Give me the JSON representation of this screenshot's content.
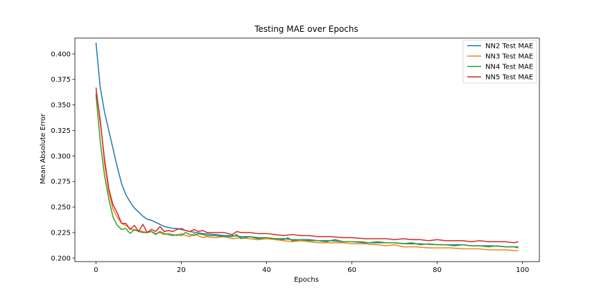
{
  "chart_data": {
    "type": "line",
    "title": "Testing MAE over Epochs",
    "xlabel": "Epochs",
    "ylabel": "Mean Absolute Error",
    "xlim": [
      -4.95,
      103.95
    ],
    "ylim": [
      0.1965,
      0.4155
    ],
    "xticks": [
      0,
      20,
      40,
      60,
      80,
      100
    ],
    "yticks": [
      0.2,
      0.225,
      0.25,
      0.275,
      0.3,
      0.325,
      0.35,
      0.375,
      0.4
    ],
    "ytick_labels": [
      "0.200",
      "0.225",
      "0.250",
      "0.275",
      "0.300",
      "0.325",
      "0.350",
      "0.375",
      "0.400"
    ],
    "grid": false,
    "legend_position": "top-right",
    "series": [
      {
        "name": "NN2 Test MAE",
        "color": "#1f77b4",
        "points": [
          [
            0,
            0.411
          ],
          [
            1,
            0.367
          ],
          [
            2,
            0.343
          ],
          [
            3,
            0.325
          ],
          [
            4,
            0.307
          ],
          [
            5,
            0.289
          ],
          [
            6,
            0.273
          ],
          [
            7,
            0.262
          ],
          [
            8,
            0.255
          ],
          [
            9,
            0.249
          ],
          [
            10,
            0.245
          ],
          [
            11,
            0.241
          ],
          [
            12,
            0.238
          ],
          [
            13,
            0.237
          ],
          [
            14,
            0.235
          ],
          [
            15,
            0.233
          ],
          [
            16,
            0.231
          ],
          [
            17,
            0.23
          ],
          [
            18,
            0.229
          ],
          [
            19,
            0.229
          ],
          [
            20,
            0.228
          ],
          [
            22,
            0.226
          ],
          [
            25,
            0.224
          ],
          [
            28,
            0.223
          ],
          [
            30,
            0.222
          ],
          [
            32,
            0.222
          ],
          [
            34,
            0.221
          ],
          [
            36,
            0.221
          ],
          [
            38,
            0.22
          ],
          [
            40,
            0.22
          ],
          [
            42,
            0.219
          ],
          [
            44,
            0.219
          ],
          [
            46,
            0.218
          ],
          [
            48,
            0.218
          ],
          [
            50,
            0.218
          ],
          [
            52,
            0.217
          ],
          [
            55,
            0.217
          ],
          [
            58,
            0.216
          ],
          [
            60,
            0.216
          ],
          [
            63,
            0.215
          ],
          [
            66,
            0.215
          ],
          [
            70,
            0.215
          ],
          [
            73,
            0.214
          ],
          [
            76,
            0.214
          ],
          [
            80,
            0.213
          ],
          [
            83,
            0.213
          ],
          [
            86,
            0.213
          ],
          [
            88,
            0.212
          ],
          [
            90,
            0.212
          ],
          [
            93,
            0.212
          ],
          [
            96,
            0.211
          ],
          [
            99,
            0.211
          ]
        ]
      },
      {
        "name": "NN3 Test MAE",
        "color": "#ff7f0e",
        "points": [
          [
            0,
            0.362
          ],
          [
            1,
            0.337
          ],
          [
            2,
            0.293
          ],
          [
            3,
            0.265
          ],
          [
            4,
            0.248
          ],
          [
            5,
            0.24
          ],
          [
            6,
            0.234
          ],
          [
            7,
            0.232
          ],
          [
            8,
            0.229
          ],
          [
            9,
            0.227
          ],
          [
            10,
            0.227
          ],
          [
            11,
            0.226
          ],
          [
            12,
            0.225
          ],
          [
            13,
            0.226
          ],
          [
            14,
            0.224
          ],
          [
            15,
            0.225
          ],
          [
            16,
            0.223
          ],
          [
            17,
            0.224
          ],
          [
            18,
            0.223
          ],
          [
            19,
            0.222
          ],
          [
            20,
            0.224
          ],
          [
            21,
            0.222
          ],
          [
            22,
            0.221
          ],
          [
            23,
            0.224
          ],
          [
            24,
            0.222
          ],
          [
            25,
            0.22
          ],
          [
            26,
            0.221
          ],
          [
            28,
            0.22
          ],
          [
            30,
            0.221
          ],
          [
            32,
            0.219
          ],
          [
            34,
            0.22
          ],
          [
            36,
            0.219
          ],
          [
            38,
            0.218
          ],
          [
            40,
            0.219
          ],
          [
            42,
            0.218
          ],
          [
            44,
            0.217
          ],
          [
            46,
            0.216
          ],
          [
            48,
            0.217
          ],
          [
            50,
            0.216
          ],
          [
            52,
            0.215
          ],
          [
            55,
            0.215
          ],
          [
            58,
            0.215
          ],
          [
            60,
            0.214
          ],
          [
            63,
            0.214
          ],
          [
            66,
            0.213
          ],
          [
            68,
            0.212
          ],
          [
            70,
            0.213
          ],
          [
            72,
            0.211
          ],
          [
            75,
            0.211
          ],
          [
            78,
            0.21
          ],
          [
            80,
            0.21
          ],
          [
            83,
            0.21
          ],
          [
            86,
            0.209
          ],
          [
            88,
            0.209
          ],
          [
            90,
            0.209
          ],
          [
            92,
            0.208
          ],
          [
            94,
            0.208
          ],
          [
            96,
            0.208
          ],
          [
            99,
            0.207
          ]
        ]
      },
      {
        "name": "NN4 Test MAE",
        "color": "#2ca02c",
        "points": [
          [
            0,
            0.36
          ],
          [
            1,
            0.314
          ],
          [
            2,
            0.281
          ],
          [
            3,
            0.258
          ],
          [
            4,
            0.24
          ],
          [
            5,
            0.232
          ],
          [
            6,
            0.228
          ],
          [
            7,
            0.229
          ],
          [
            8,
            0.224
          ],
          [
            9,
            0.228
          ],
          [
            10,
            0.226
          ],
          [
            11,
            0.225
          ],
          [
            12,
            0.225
          ],
          [
            13,
            0.226
          ],
          [
            14,
            0.223
          ],
          [
            15,
            0.226
          ],
          [
            16,
            0.224
          ],
          [
            17,
            0.223
          ],
          [
            18,
            0.222
          ],
          [
            19,
            0.223
          ],
          [
            20,
            0.222
          ],
          [
            21,
            0.225
          ],
          [
            22,
            0.223
          ],
          [
            23,
            0.222
          ],
          [
            24,
            0.224
          ],
          [
            26,
            0.222
          ],
          [
            28,
            0.222
          ],
          [
            30,
            0.221
          ],
          [
            32,
            0.221
          ],
          [
            33,
            0.223
          ],
          [
            34,
            0.219
          ],
          [
            36,
            0.221
          ],
          [
            38,
            0.219
          ],
          [
            40,
            0.22
          ],
          [
            42,
            0.219
          ],
          [
            44,
            0.218
          ],
          [
            45,
            0.22
          ],
          [
            46,
            0.217
          ],
          [
            48,
            0.218
          ],
          [
            50,
            0.217
          ],
          [
            52,
            0.217
          ],
          [
            54,
            0.216
          ],
          [
            56,
            0.218
          ],
          [
            58,
            0.216
          ],
          [
            60,
            0.216
          ],
          [
            62,
            0.216
          ],
          [
            64,
            0.215
          ],
          [
            66,
            0.216
          ],
          [
            68,
            0.215
          ],
          [
            70,
            0.215
          ],
          [
            72,
            0.214
          ],
          [
            74,
            0.215
          ],
          [
            76,
            0.213
          ],
          [
            78,
            0.214
          ],
          [
            80,
            0.213
          ],
          [
            82,
            0.213
          ],
          [
            84,
            0.212
          ],
          [
            86,
            0.213
          ],
          [
            88,
            0.212
          ],
          [
            90,
            0.212
          ],
          [
            92,
            0.211
          ],
          [
            94,
            0.212
          ],
          [
            96,
            0.211
          ],
          [
            98,
            0.211
          ],
          [
            99,
            0.21
          ]
        ]
      },
      {
        "name": "NN5 Test MAE",
        "color": "#d62728",
        "points": [
          [
            0,
            0.367
          ],
          [
            1,
            0.333
          ],
          [
            2,
            0.297
          ],
          [
            3,
            0.268
          ],
          [
            4,
            0.252
          ],
          [
            5,
            0.244
          ],
          [
            6,
            0.234
          ],
          [
            7,
            0.234
          ],
          [
            8,
            0.228
          ],
          [
            9,
            0.232
          ],
          [
            10,
            0.226
          ],
          [
            11,
            0.233
          ],
          [
            12,
            0.225
          ],
          [
            13,
            0.228
          ],
          [
            14,
            0.226
          ],
          [
            15,
            0.231
          ],
          [
            16,
            0.226
          ],
          [
            17,
            0.227
          ],
          [
            18,
            0.226
          ],
          [
            19,
            0.228
          ],
          [
            20,
            0.229
          ],
          [
            21,
            0.227
          ],
          [
            22,
            0.226
          ],
          [
            23,
            0.228
          ],
          [
            24,
            0.226
          ],
          [
            25,
            0.227
          ],
          [
            26,
            0.225
          ],
          [
            28,
            0.225
          ],
          [
            30,
            0.225
          ],
          [
            31,
            0.224
          ],
          [
            32,
            0.223
          ],
          [
            33,
            0.226
          ],
          [
            34,
            0.225
          ],
          [
            36,
            0.225
          ],
          [
            38,
            0.224
          ],
          [
            40,
            0.224
          ],
          [
            42,
            0.223
          ],
          [
            44,
            0.222
          ],
          [
            46,
            0.223
          ],
          [
            48,
            0.222
          ],
          [
            50,
            0.222
          ],
          [
            52,
            0.221
          ],
          [
            55,
            0.221
          ],
          [
            58,
            0.22
          ],
          [
            60,
            0.22
          ],
          [
            63,
            0.219
          ],
          [
            66,
            0.219
          ],
          [
            68,
            0.219
          ],
          [
            70,
            0.218
          ],
          [
            72,
            0.219
          ],
          [
            74,
            0.218
          ],
          [
            76,
            0.218
          ],
          [
            78,
            0.217
          ],
          [
            80,
            0.218
          ],
          [
            82,
            0.217
          ],
          [
            84,
            0.217
          ],
          [
            86,
            0.217
          ],
          [
            88,
            0.216
          ],
          [
            90,
            0.217
          ],
          [
            92,
            0.216
          ],
          [
            94,
            0.216
          ],
          [
            96,
            0.216
          ],
          [
            98,
            0.215
          ],
          [
            99,
            0.216
          ]
        ]
      }
    ]
  }
}
